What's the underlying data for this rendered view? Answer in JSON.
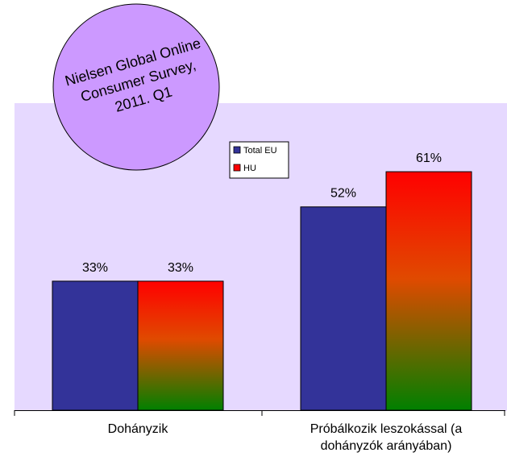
{
  "chart_data": {
    "type": "bar",
    "title": "",
    "categories": [
      "Dohányzik",
      "Próbálkozik leszokással (a dohányzók arányában)"
    ],
    "category_lines": [
      [
        "Dohányzik"
      ],
      [
        "Próbálkozik leszokással (a",
        "dohányzók arányában)"
      ]
    ],
    "series": [
      {
        "name": "Total EU",
        "values": [
          33,
          52
        ],
        "labels": [
          "33%",
          "52%"
        ],
        "color": "#333399"
      },
      {
        "name": "HU",
        "values": [
          33,
          61
        ],
        "labels": [
          "33%",
          "61%"
        ],
        "color_top": "#ff0000",
        "color_bottom": "#008000"
      }
    ],
    "ylim": [
      0,
      75
    ],
    "grid": false,
    "legend_position": "top-center",
    "background_color": "#e6d9ff",
    "annotation": {
      "lines": [
        "Nielsen Global Online",
        "Consumer Survey,",
        "2011. Q1"
      ],
      "fill": "#cc99ff"
    }
  }
}
